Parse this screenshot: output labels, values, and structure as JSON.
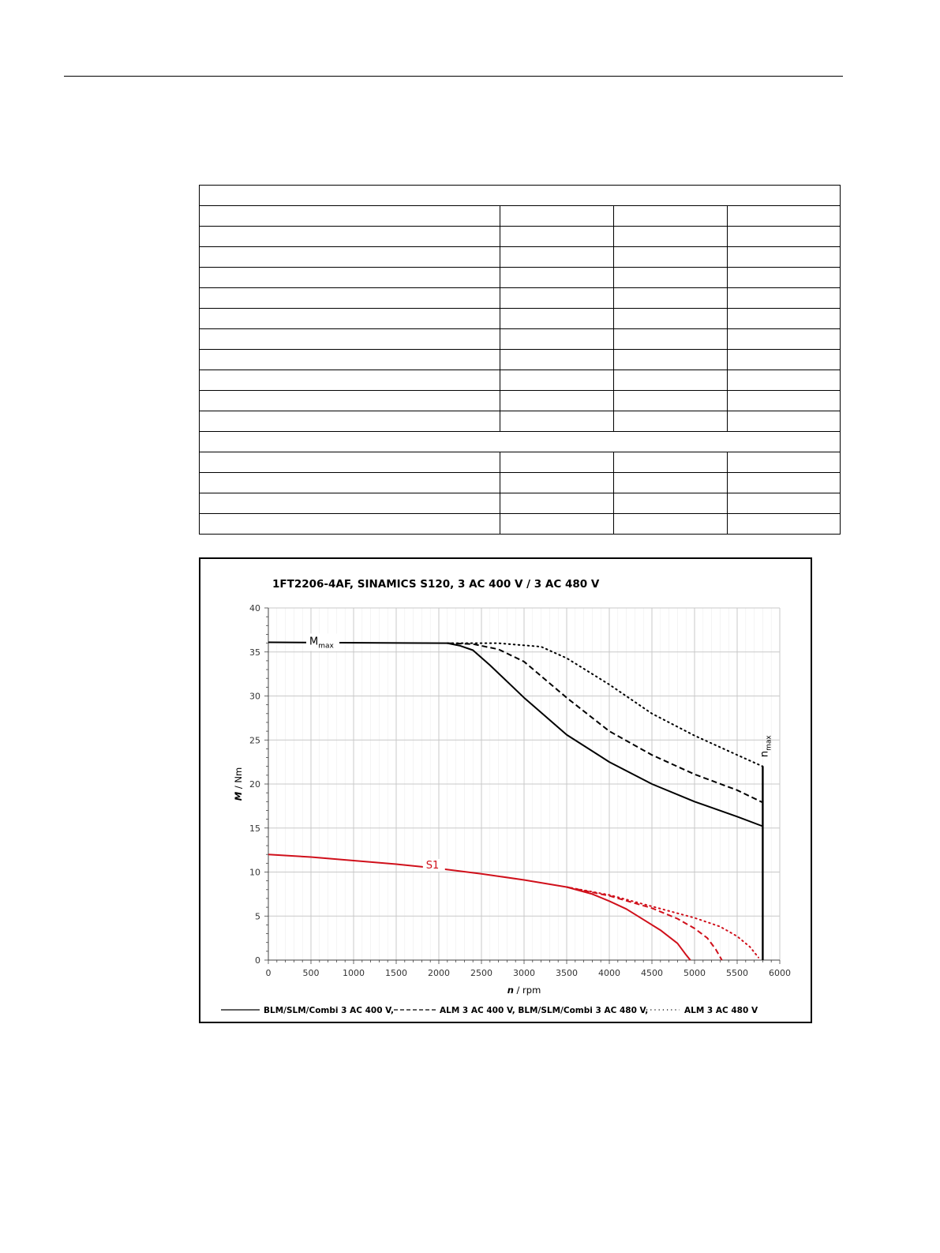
{
  "table": {
    "rows": [
      {
        "type": "header"
      },
      {
        "type": "row",
        "cells": [
          "",
          "",
          "",
          ""
        ]
      },
      {
        "type": "row",
        "cells": [
          "",
          "",
          "",
          ""
        ]
      },
      {
        "type": "row",
        "cells": [
          "",
          "",
          "",
          ""
        ]
      },
      {
        "type": "row",
        "cells": [
          "",
          "",
          "",
          ""
        ]
      },
      {
        "type": "row",
        "cells": [
          "",
          "",
          "",
          ""
        ]
      },
      {
        "type": "row",
        "cells": [
          "",
          "",
          "",
          ""
        ]
      },
      {
        "type": "row",
        "cells": [
          "",
          "",
          "",
          ""
        ]
      },
      {
        "type": "row",
        "cells": [
          "",
          "",
          "",
          ""
        ]
      },
      {
        "type": "row",
        "cells": [
          "",
          "",
          "",
          ""
        ]
      },
      {
        "type": "row",
        "cells": [
          "",
          "",
          "",
          ""
        ]
      },
      {
        "type": "row",
        "cells": [
          "",
          "",
          "",
          ""
        ]
      },
      {
        "type": "header"
      },
      {
        "type": "row",
        "cells": [
          "",
          "",
          "",
          ""
        ]
      },
      {
        "type": "row",
        "cells": [
          "",
          "",
          "",
          ""
        ]
      },
      {
        "type": "row",
        "cells": [
          "",
          "",
          "",
          ""
        ]
      },
      {
        "type": "row",
        "cells": [
          "",
          "",
          "",
          ""
        ]
      }
    ]
  },
  "chart_data": {
    "type": "line",
    "title": "1FT2206-4AF,  SINAMICS S120,  3 AC 400 V / 3 AC 480 V",
    "xlabel": {
      "var": "n",
      "unit": " / rpm"
    },
    "ylabel": {
      "var": "M",
      "unit": " / Nm"
    },
    "xlim": [
      0,
      6000
    ],
    "ylim": [
      0,
      40
    ],
    "xticks": [
      0,
      500,
      1000,
      1500,
      2000,
      2500,
      3000,
      3500,
      4000,
      4500,
      5000,
      5500,
      6000
    ],
    "yticks": [
      0,
      5,
      10,
      15,
      20,
      25,
      30,
      35,
      40
    ],
    "grid": true,
    "colors": {
      "mmax": "#000000",
      "s1": "#d0101b",
      "grid": "#c8c8c8"
    },
    "annotations": [
      {
        "text": "M",
        "sub": "max",
        "x": 500,
        "y": 36.1
      },
      {
        "text": "S1",
        "x": 1850,
        "y": 10.5
      },
      {
        "text": "n",
        "sub": "max",
        "x": 5800,
        "y": 22.5,
        "rotate": true
      }
    ],
    "nmax_line": {
      "x": 5800,
      "y_top": 22
    },
    "legend": {
      "placement": "bottom",
      "entries": [
        {
          "label": "BLM/SLM/Combi 3 AC 400 V,",
          "style": "solid"
        },
        {
          "label": "ALM 3 AC 400 V, BLM/SLM/Combi 3 AC 480 V,",
          "style": "dashed"
        },
        {
          "label": "ALM 3 AC 480 V",
          "style": "dotted"
        }
      ]
    },
    "series": [
      {
        "group": "mmax",
        "style": "solid",
        "color": "#000000",
        "x": [
          0,
          2100,
          2250,
          2400,
          2600,
          3000,
          3500,
          4000,
          4500,
          5000,
          5500,
          5800
        ],
        "y": [
          36.1,
          36.0,
          35.7,
          35.2,
          33.5,
          29.8,
          25.6,
          22.5,
          20.0,
          18.0,
          16.3,
          15.2
        ]
      },
      {
        "group": "mmax",
        "style": "dashed",
        "color": "#000000",
        "x": [
          2100,
          2400,
          2700,
          3000,
          3500,
          4000,
          4500,
          5000,
          5500,
          5800
        ],
        "y": [
          36.0,
          35.9,
          35.3,
          33.9,
          29.8,
          26.0,
          23.3,
          21.1,
          19.3,
          17.9
        ]
      },
      {
        "group": "mmax",
        "style": "dotted",
        "color": "#000000",
        "x": [
          2100,
          2700,
          3200,
          3500,
          4000,
          4500,
          5000,
          5500,
          5800
        ],
        "y": [
          36.0,
          36.0,
          35.6,
          34.3,
          31.3,
          28.0,
          25.5,
          23.3,
          22.0
        ]
      },
      {
        "group": "s1",
        "style": "solid",
        "color": "#d0101b",
        "x": [
          0,
          500,
          1000,
          1500,
          2000,
          2500,
          3000,
          3500,
          3800,
          4000,
          4200,
          4400,
          4600,
          4800,
          4900,
          4950
        ],
        "y": [
          12.0,
          11.7,
          11.3,
          10.9,
          10.4,
          9.8,
          9.1,
          8.3,
          7.5,
          6.7,
          5.8,
          4.6,
          3.4,
          1.9,
          0.6,
          0.0
        ]
      },
      {
        "group": "s1",
        "style": "dashed",
        "color": "#d0101b",
        "x": [
          3500,
          4000,
          4500,
          4800,
          5000,
          5150,
          5250,
          5320
        ],
        "y": [
          8.3,
          7.3,
          5.9,
          4.7,
          3.6,
          2.5,
          1.2,
          0.0
        ]
      },
      {
        "group": "s1",
        "style": "dotted",
        "color": "#d0101b",
        "x": [
          3500,
          4000,
          4500,
          5000,
          5300,
          5500,
          5650,
          5750
        ],
        "y": [
          8.3,
          7.4,
          6.1,
          4.8,
          3.8,
          2.7,
          1.5,
          0.3
        ]
      }
    ]
  }
}
